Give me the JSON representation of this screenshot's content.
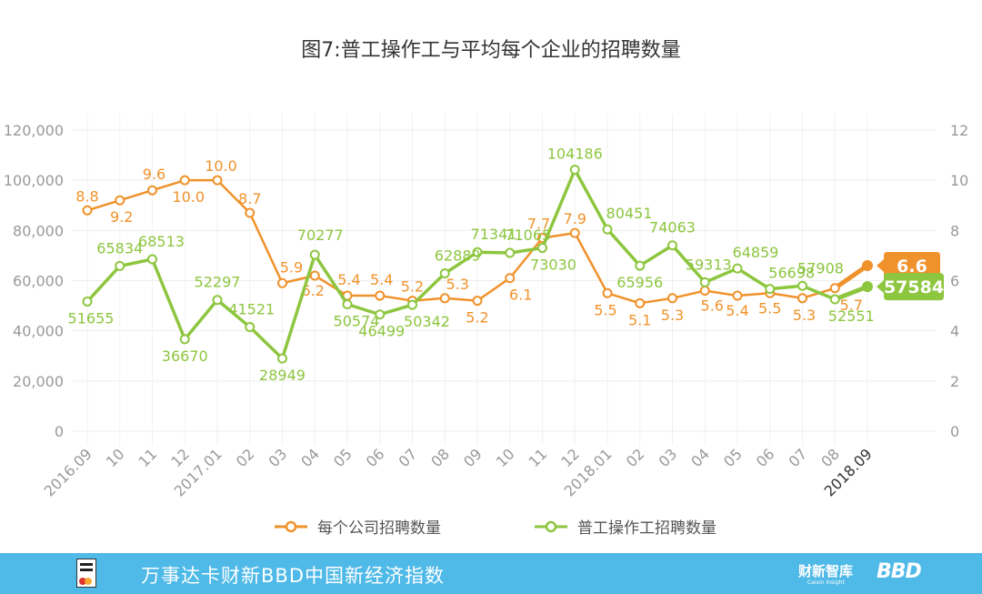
{
  "footer": {
    "title": "万事达卡财新BBD中国新经济指数",
    "brand1": "财新智库",
    "brand1_sub": "Caixin Insight",
    "brand2": "BBD"
  },
  "chart_data": {
    "type": "line",
    "title": "图7:普工操作工与平均每个企业的招聘数量",
    "categories": [
      "2016.09",
      "10",
      "11",
      "12",
      "2017.01",
      "02",
      "03",
      "04",
      "05",
      "06",
      "07",
      "08",
      "09",
      "10",
      "11",
      "12",
      "2018.01",
      "02",
      "03",
      "04",
      "05",
      "06",
      "07",
      "08",
      "2018.09"
    ],
    "y_left": {
      "ylim": [
        0,
        120000
      ],
      "ticks": [
        "0",
        "20,000",
        "40,000",
        "60,000",
        "80,000",
        "100,000",
        "120,000"
      ]
    },
    "y_right": {
      "ylim": [
        0,
        12
      ],
      "ticks": [
        "0",
        "2",
        "4",
        "6",
        "8",
        "10",
        "12"
      ]
    },
    "legend_position": "bottom",
    "series": [
      {
        "name": "每个公司招聘数量",
        "axis": "right",
        "color": "#f0922b",
        "values": [
          8.8,
          9.2,
          9.6,
          10.0,
          10.0,
          8.7,
          5.9,
          6.2,
          5.4,
          5.4,
          5.2,
          5.3,
          5.2,
          6.1,
          7.7,
          7.9,
          5.5,
          5.1,
          5.3,
          5.6,
          5.4,
          5.5,
          5.3,
          5.7,
          6.6
        ],
        "labels": [
          "8.8",
          "9.2",
          "9.6",
          "10.0",
          "10.0",
          "8.7",
          "5.9",
          "6.2",
          "5.4",
          "5.4",
          "5.2",
          "5.3",
          "5.2",
          "6.1",
          "7.7",
          "7.9",
          "5.5",
          "5.1",
          "5.3",
          "5.6",
          "5.4",
          "5.5",
          "5.3",
          "5.7",
          "6.6"
        ]
      },
      {
        "name": "普工操作工招聘数量",
        "axis": "left",
        "color": "#8dc63f",
        "values": [
          51655,
          65834,
          68513,
          36670,
          52297,
          41521,
          28949,
          70277,
          50574,
          46499,
          50342,
          62889,
          71341,
          71065,
          73030,
          104186,
          80451,
          65956,
          74063,
          59313,
          64859,
          56698,
          57908,
          52551,
          57584
        ],
        "labels": [
          "51655",
          "65834",
          "68513",
          "36670",
          "52297",
          "41521",
          "28949",
          "70277",
          "50574",
          "46499",
          "50342",
          "62889",
          "71341",
          "71065",
          "73030",
          "104186",
          "80451",
          "65956",
          "74063",
          "59313",
          "64859",
          "56698",
          "57908",
          "52551",
          "57584"
        ]
      }
    ]
  }
}
